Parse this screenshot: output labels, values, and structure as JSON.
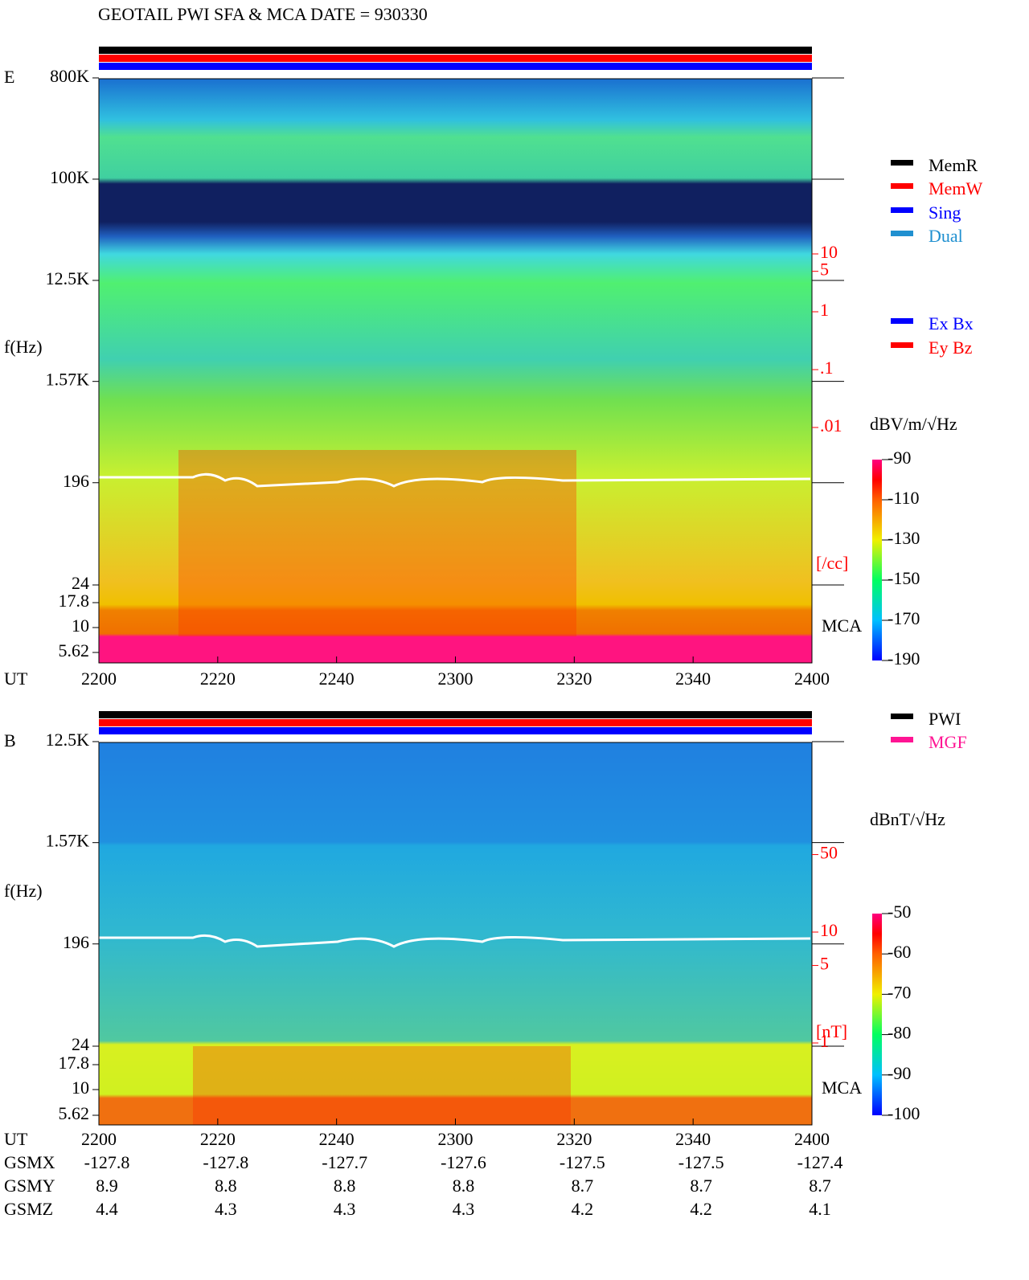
{
  "title": "GEOTAIL  PWI SFA & MCA   DATE = 930330",
  "time_axis": {
    "label": "UT",
    "ticks": [
      "2200",
      "2220",
      "2240",
      "2300",
      "2320",
      "2340",
      "2400"
    ]
  },
  "panels": [
    {
      "label": "E",
      "y_label": "f(Hz)",
      "freq_ticks": [
        {
          "value": 800000,
          "label": "800K"
        },
        {
          "value": 100000,
          "label": "100K"
        },
        {
          "value": 12500,
          "label": "12.5K"
        },
        {
          "value": 1570,
          "label": "1.57K"
        },
        196,
        24
      ],
      "mca_label": "MCA",
      "mca_ticks": [
        "17.8",
        "10",
        "5.62"
      ],
      "side_ticks": [
        10,
        5,
        1,
        {
          "value": 0.1,
          "label": ".1"
        },
        {
          "value": 0.01,
          "label": ".01"
        }
      ],
      "side_unit": "[/cc]",
      "colorbar_unit": "dBV/m/√Hz",
      "clim": [
        -190,
        -90
      ],
      "colorbar_ticks": [
        -90,
        -110,
        -130,
        -150,
        -170,
        -190
      ],
      "legends": [
        [
          {
            "name": "MemR",
            "color": "#000000"
          },
          {
            "name": "MemW",
            "color": "#ff0000"
          },
          {
            "name": "Sing",
            "color": "#0000ff"
          },
          {
            "name": "Dual",
            "color": "#2090d0"
          }
        ],
        [
          {
            "name": "Ex Bx",
            "color": "#0000ff"
          },
          {
            "name": "Ey Bz",
            "color": "#ff0000"
          }
        ]
      ]
    },
    {
      "label": "B",
      "y_label": "f(Hz)",
      "freq_ticks": [
        {
          "value": 12500,
          "label": "12.5K"
        },
        {
          "value": 1570,
          "label": "1.57K"
        },
        196,
        24
      ],
      "mca_label": "MCA",
      "mca_ticks": [
        "17.8",
        "10",
        "5.62"
      ],
      "side_ticks": [
        50,
        10,
        5,
        1
      ],
      "side_unit": "[nT]",
      "colorbar_unit": "dBnT/√Hz",
      "clim": [
        -100,
        -50
      ],
      "colorbar_ticks": [
        -50,
        -60,
        -70,
        -80,
        -90,
        -100
      ],
      "legends": [
        [
          {
            "name": "PWI",
            "color": "#000000"
          },
          {
            "name": "MGF",
            "color": "#ff1493"
          }
        ]
      ]
    }
  ],
  "orbit": {
    "rows": [
      {
        "label": "GSMX",
        "values": [
          "-127.8",
          "-127.8",
          "-127.7",
          "-127.6",
          "-127.5",
          "-127.5",
          "-127.4"
        ]
      },
      {
        "label": "GSMY",
        "values": [
          "8.9",
          "8.8",
          "8.8",
          "8.8",
          "8.7",
          "8.7",
          "8.7"
        ]
      },
      {
        "label": "GSMZ",
        "values": [
          "4.4",
          "4.3",
          "4.3",
          "4.3",
          "4.2",
          "4.2",
          "4.1"
        ]
      }
    ]
  }
}
